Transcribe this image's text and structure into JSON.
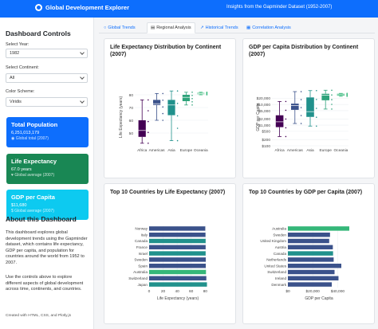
{
  "header": {
    "title": "Global Development Explorer",
    "subtitle": "Insights from the Gapminder Dataset (1952-2007)"
  },
  "sidebar": {
    "title": "Dashboard Controls",
    "year_label": "Select Year:",
    "year_value": "1982",
    "continent_label": "Select Continent:",
    "continent_value": "All",
    "color_label": "Color Scheme:",
    "color_value": "Viridis",
    "cards": [
      {
        "title": "Total Population",
        "value": "6,251,013,179",
        "sub": "Global total (2007)",
        "color": "#0d6efd"
      },
      {
        "title": "Life Expectancy",
        "value": "67.0 years",
        "sub": "Global average (2007)",
        "color": "#198754"
      },
      {
        "title": "GDP per Capita",
        "value": "$11,680",
        "sub": "Global average (2007)",
        "color": "#0dcaf0"
      }
    ],
    "about_title": "About this Dashboard",
    "about_p1": "This dashboard explores global development trends using the Gapminder dataset, which contains life expectancy, GDP per capita, and population for countries around the world from 1952 to 2007.",
    "about_p2": "Use the controls above to explore different aspects of global development across time, continents, and countries.",
    "footer": "Created with HTML, CSS, and Plotly.js"
  },
  "tabs": [
    {
      "label": "Global Trends",
      "icon": "globe-icon"
    },
    {
      "label": "Regional Analysis",
      "icon": "map-icon"
    },
    {
      "label": "Historical Trends",
      "icon": "chart-line-icon"
    },
    {
      "label": "Correlation Analysis",
      "icon": "table-icon"
    }
  ],
  "colors": {
    "primary": "#0d6efd",
    "success": "#198754",
    "info": "#0dcaf0"
  },
  "chart_data": [
    {
      "type": "box",
      "title": "Life Expectancy Distribution by Continent (2007)",
      "ylabel": "Life Expectancy (years)",
      "categories": [
        "Africa",
        "Americas",
        "Asia",
        "Europe",
        "Oceania"
      ],
      "ylim": [
        40,
        85
      ],
      "yticks": [
        50,
        60,
        70,
        80
      ],
      "boxes": [
        {
          "min": 42,
          "q1": 47,
          "median": 52,
          "q3": 60,
          "max": 76,
          "color": "#440154"
        },
        {
          "min": 60,
          "q1": 72,
          "median": 73,
          "q3": 76,
          "max": 81,
          "color": "#3b528b"
        },
        {
          "min": 44,
          "q1": 64,
          "median": 72,
          "q3": 76,
          "max": 83,
          "color": "#21918c"
        },
        {
          "min": 72,
          "q1": 75,
          "median": 78,
          "q3": 80,
          "max": 82,
          "color": "#2ea37a"
        },
        {
          "min": 80,
          "q1": 80.5,
          "median": 81,
          "q3": 81.5,
          "max": 82,
          "color": "#35b779"
        }
      ]
    },
    {
      "type": "box",
      "title": "GDP per Capita Distribution by Continent (2007)",
      "ylabel": "GDP per Capita",
      "categories": [
        "Africa",
        "Americas",
        "Asia",
        "Europe",
        "Oceania"
      ],
      "yscale": "log",
      "ylim": [
        100,
        60000
      ],
      "yticklabels": [
        "$100",
        "$200",
        "$500",
        "$1,000",
        "$2,000",
        "$5,000",
        "$10,000",
        "$20,000"
      ],
      "yticks": [
        100,
        200,
        500,
        1000,
        2000,
        5000,
        10000,
        20000
      ],
      "boxes": [
        {
          "min": 280,
          "q1": 800,
          "median": 1450,
          "q3": 3000,
          "max": 14000,
          "color": "#440154"
        },
        {
          "min": 1200,
          "q1": 5500,
          "median": 8900,
          "q3": 11000,
          "max": 42000,
          "color": "#3b528b"
        },
        {
          "min": 900,
          "q1": 2500,
          "median": 4500,
          "q3": 22000,
          "max": 47000,
          "color": "#21918c"
        },
        {
          "min": 6000,
          "q1": 16000,
          "median": 28000,
          "q3": 33000,
          "max": 49000,
          "color": "#2ea37a"
        },
        {
          "min": 25000,
          "q1": 27000,
          "median": 29800,
          "q3": 33000,
          "max": 34500,
          "color": "#35b779"
        }
      ]
    },
    {
      "type": "bar",
      "orientation": "horizontal",
      "title": "Top 10 Countries by Life Expectancy (2007)",
      "xlabel": "Life Expectancy (years)",
      "xlim": [
        0,
        82
      ],
      "xticks": [
        0,
        20,
        40,
        60,
        80
      ],
      "categories": [
        "Norway",
        "Italy",
        "Canada",
        "France",
        "Israel",
        "Sweden",
        "Spain",
        "Australia",
        "Switzerland",
        "Japan"
      ],
      "values": [
        80.2,
        80.5,
        80.7,
        80.7,
        80.7,
        80.9,
        80.9,
        81.2,
        81.7,
        82.6
      ],
      "colors": [
        "#3b528b",
        "#3b528b",
        "#21918c",
        "#3b528b",
        "#21918c",
        "#3b528b",
        "#3b528b",
        "#35b779",
        "#3b528b",
        "#21918c"
      ]
    },
    {
      "type": "bar",
      "orientation": "horizontal",
      "title": "Top 10 Countries by GDP per Capita (2007)",
      "xlabel": "GDP per Capita",
      "xlim": [
        0,
        50000
      ],
      "xticks": [
        0,
        20000,
        40000
      ],
      "xticklabels": [
        "$0",
        "$20,000",
        "$40,000"
      ],
      "categories": [
        "Australia",
        "Sweden",
        "United Kingdom",
        "Austria",
        "Canada",
        "Netherlands",
        "United States",
        "Switzerland",
        "Ireland",
        "Denmark"
      ],
      "values": [
        49357,
        33860,
        33203,
        36126,
        36319,
        36798,
        42952,
        37506,
        40676,
        35278
      ],
      "colors": [
        "#35b779",
        "#3b528b",
        "#3b528b",
        "#3b528b",
        "#21918c",
        "#3b528b",
        "#3b528b",
        "#3b528b",
        "#3b528b",
        "#3b528b"
      ]
    }
  ]
}
